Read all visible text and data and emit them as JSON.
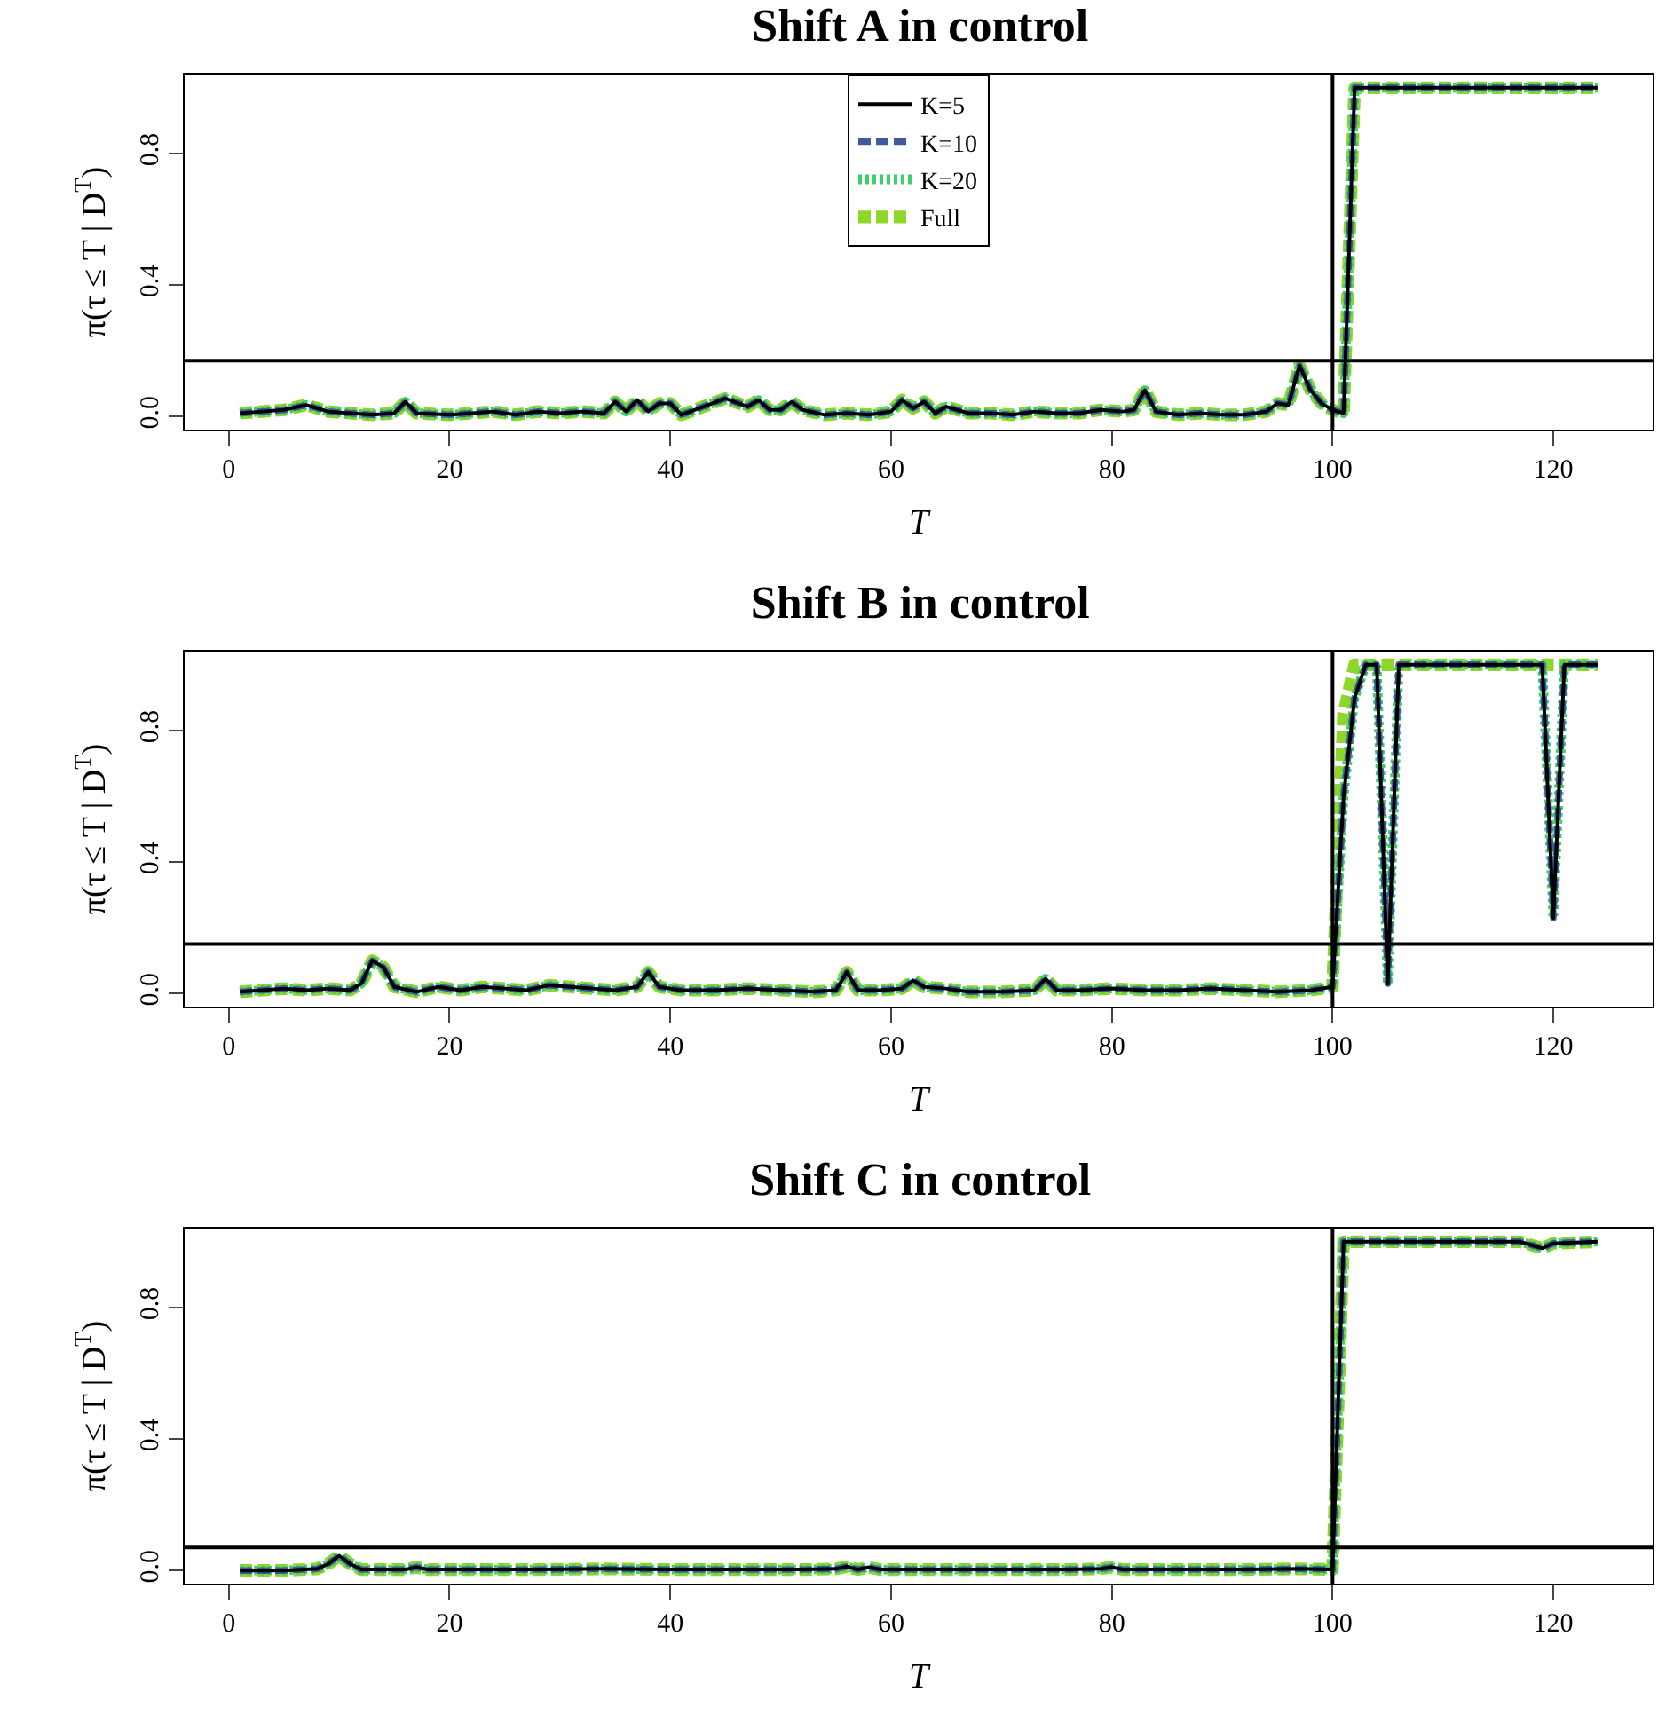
{
  "chart_data": [
    {
      "type": "line",
      "title": "Shift A in control",
      "xlabel": "T",
      "ylabel": "π(τ ≤ T | D$^{T}$)",
      "xlim": [
        -4,
        129
      ],
      "ylim": [
        -0.04,
        1.04
      ],
      "xticks": [
        0,
        20,
        40,
        60,
        80,
        100,
        120
      ],
      "yticks": [
        {
          "value": 0,
          "label": "0.0"
        },
        {
          "value": 0.4,
          "label": "0.4"
        },
        {
          "value": 0.8,
          "label": "0.8"
        }
      ],
      "legend": "top",
      "grid": false,
      "x": [
        1,
        3,
        5,
        7,
        9,
        11,
        13,
        15,
        16,
        17,
        20,
        22,
        24,
        26,
        28,
        30,
        32,
        34,
        35,
        36,
        37,
        38,
        39,
        40,
        41,
        43,
        45,
        47,
        48,
        49,
        50,
        51,
        52,
        54,
        56,
        58,
        60,
        61,
        62,
        63,
        64,
        65,
        67,
        69,
        71,
        73,
        75,
        77,
        79,
        81,
        82,
        83,
        84,
        86,
        88,
        90,
        92,
        94,
        95,
        96,
        97,
        98,
        99,
        100,
        101,
        102,
        124
      ],
      "series": [
        {
          "name": "K=5",
          "color": "#000000",
          "line_style": "solid",
          "values": [
            0.01,
            0.015,
            0.02,
            0.035,
            0.015,
            0.01,
            0.005,
            0.01,
            0.045,
            0.01,
            0.005,
            0.01,
            0.015,
            0.005,
            0.015,
            0.01,
            0.015,
            0.01,
            0.045,
            0.015,
            0.05,
            0.015,
            0.04,
            0.04,
            0.005,
            0.03,
            0.055,
            0.03,
            0.05,
            0.02,
            0.02,
            0.045,
            0.02,
            0.005,
            0.01,
            0.005,
            0.015,
            0.05,
            0.025,
            0.045,
            0.01,
            0.03,
            0.01,
            0.01,
            0.005,
            0.015,
            0.01,
            0.01,
            0.02,
            0.015,
            0.02,
            0.08,
            0.015,
            0.005,
            0.01,
            0.005,
            0.005,
            0.015,
            0.04,
            0.035,
            0.155,
            0.08,
            0.04,
            0.02,
            0.01,
            1,
            1
          ]
        },
        {
          "name": "K=10",
          "color": "#3b5e9a",
          "line_style": "dashed",
          "values": [
            0.01,
            0.015,
            0.02,
            0.035,
            0.015,
            0.01,
            0.005,
            0.01,
            0.045,
            0.01,
            0.005,
            0.01,
            0.015,
            0.005,
            0.015,
            0.01,
            0.015,
            0.01,
            0.045,
            0.015,
            0.05,
            0.015,
            0.04,
            0.04,
            0.005,
            0.03,
            0.055,
            0.03,
            0.05,
            0.02,
            0.02,
            0.045,
            0.02,
            0.005,
            0.01,
            0.005,
            0.015,
            0.05,
            0.025,
            0.045,
            0.01,
            0.03,
            0.01,
            0.01,
            0.005,
            0.015,
            0.01,
            0.01,
            0.02,
            0.015,
            0.02,
            0.08,
            0.015,
            0.005,
            0.01,
            0.005,
            0.005,
            0.015,
            0.04,
            0.035,
            0.155,
            0.08,
            0.04,
            0.02,
            0.01,
            1,
            1
          ]
        },
        {
          "name": "K=20",
          "color": "#3ecf6a",
          "line_style": "dotted",
          "values": [
            0.01,
            0.015,
            0.02,
            0.035,
            0.015,
            0.01,
            0.005,
            0.01,
            0.045,
            0.01,
            0.005,
            0.01,
            0.015,
            0.005,
            0.015,
            0.01,
            0.015,
            0.01,
            0.045,
            0.015,
            0.05,
            0.015,
            0.04,
            0.04,
            0.005,
            0.03,
            0.055,
            0.03,
            0.05,
            0.02,
            0.02,
            0.045,
            0.02,
            0.005,
            0.01,
            0.005,
            0.015,
            0.05,
            0.025,
            0.045,
            0.01,
            0.03,
            0.01,
            0.01,
            0.005,
            0.015,
            0.01,
            0.01,
            0.02,
            0.015,
            0.02,
            0.08,
            0.015,
            0.005,
            0.01,
            0.005,
            0.005,
            0.015,
            0.04,
            0.035,
            0.155,
            0.08,
            0.04,
            0.02,
            0.01,
            1,
            1
          ]
        },
        {
          "name": "Full",
          "color": "#8fd62a",
          "line_style": "dashed",
          "values": [
            0.01,
            0.015,
            0.02,
            0.035,
            0.015,
            0.01,
            0.005,
            0.01,
            0.045,
            0.01,
            0.005,
            0.01,
            0.015,
            0.005,
            0.015,
            0.01,
            0.015,
            0.01,
            0.045,
            0.015,
            0.05,
            0.015,
            0.04,
            0.04,
            0.005,
            0.03,
            0.055,
            0.03,
            0.05,
            0.02,
            0.02,
            0.045,
            0.02,
            0.005,
            0.01,
            0.005,
            0.015,
            0.05,
            0.025,
            0.045,
            0.01,
            0.03,
            0.01,
            0.01,
            0.005,
            0.015,
            0.01,
            0.01,
            0.02,
            0.015,
            0.02,
            0.08,
            0.015,
            0.005,
            0.01,
            0.005,
            0.005,
            0.015,
            0.04,
            0.035,
            0.155,
            0.08,
            0.04,
            0.02,
            0.01,
            1,
            1
          ]
        }
      ],
      "ref_lines": [
        {
          "axis": "x",
          "value": 100,
          "color": "#000000"
        },
        {
          "axis": "y",
          "value": 0.17,
          "color": "#000000"
        }
      ]
    },
    {
      "type": "line",
      "title": "Shift B in control",
      "xlabel": "T",
      "ylabel": "π(τ ≤ T | D$^{T}$)",
      "xlim": [
        -4,
        129
      ],
      "ylim": [
        -0.04,
        1.04
      ],
      "xticks": [
        0,
        20,
        40,
        60,
        80,
        100,
        120
      ],
      "yticks": [
        {
          "value": 0,
          "label": "0.0"
        },
        {
          "value": 0.4,
          "label": "0.4"
        },
        {
          "value": 0.8,
          "label": "0.8"
        }
      ],
      "legend": false,
      "grid": false,
      "x": [
        1,
        3,
        5,
        7,
        9,
        11,
        12,
        13,
        14,
        15,
        17,
        19,
        21,
        23,
        25,
        27,
        29,
        31,
        33,
        35,
        37,
        38,
        39,
        41,
        44,
        47,
        50,
        53,
        55,
        56,
        57,
        59,
        61,
        62,
        63,
        65,
        67,
        70,
        73,
        74,
        75,
        77,
        80,
        83,
        86,
        89,
        92,
        95,
        98,
        100,
        101,
        102,
        103,
        104,
        105,
        106,
        119,
        120,
        121,
        124
      ],
      "series": [
        {
          "color": "#000000",
          "line_style": "solid",
          "values": [
            0.005,
            0.01,
            0.015,
            0.01,
            0.015,
            0.01,
            0.03,
            0.1,
            0.08,
            0.02,
            0.005,
            0.02,
            0.01,
            0.02,
            0.015,
            0.01,
            0.025,
            0.02,
            0.015,
            0.01,
            0.02,
            0.065,
            0.02,
            0.01,
            0.01,
            0.015,
            0.01,
            0.005,
            0.01,
            0.065,
            0.01,
            0.01,
            0.015,
            0.04,
            0.02,
            0.015,
            0.005,
            0.005,
            0.01,
            0.045,
            0.01,
            0.01,
            0.015,
            0.01,
            0.01,
            0.015,
            0.01,
            0.005,
            0.01,
            0.02,
            0.6,
            0.9,
            1,
            1,
            0.03,
            1,
            1,
            0.23,
            1,
            1
          ]
        },
        {
          "color": "#3b5e9a",
          "line_style": "dashed",
          "values": [
            0.005,
            0.01,
            0.015,
            0.01,
            0.015,
            0.01,
            0.03,
            0.1,
            0.08,
            0.02,
            0.005,
            0.02,
            0.01,
            0.02,
            0.015,
            0.01,
            0.025,
            0.02,
            0.015,
            0.01,
            0.02,
            0.065,
            0.02,
            0.01,
            0.01,
            0.015,
            0.01,
            0.005,
            0.01,
            0.065,
            0.01,
            0.01,
            0.015,
            0.04,
            0.02,
            0.015,
            0.005,
            0.005,
            0.01,
            0.045,
            0.01,
            0.01,
            0.015,
            0.01,
            0.01,
            0.015,
            0.01,
            0.005,
            0.01,
            0.02,
            0.6,
            0.9,
            1,
            1,
            0.03,
            1,
            1,
            0.23,
            1,
            1
          ]
        },
        {
          "color": "#3ecf6a",
          "line_style": "dotted",
          "values": [
            0.005,
            0.01,
            0.015,
            0.01,
            0.015,
            0.01,
            0.03,
            0.1,
            0.08,
            0.02,
            0.005,
            0.02,
            0.01,
            0.02,
            0.015,
            0.01,
            0.025,
            0.02,
            0.015,
            0.01,
            0.02,
            0.065,
            0.02,
            0.01,
            0.01,
            0.015,
            0.01,
            0.005,
            0.01,
            0.065,
            0.01,
            0.01,
            0.015,
            0.04,
            0.02,
            0.015,
            0.005,
            0.005,
            0.01,
            0.045,
            0.01,
            0.01,
            0.015,
            0.01,
            0.01,
            0.015,
            0.01,
            0.005,
            0.01,
            0.02,
            0.6,
            0.9,
            1,
            1,
            0.03,
            1,
            1,
            0.23,
            1,
            1
          ]
        },
        {
          "color": "#8fd62a",
          "line_style": "dashed",
          "values": [
            0.005,
            0.01,
            0.015,
            0.01,
            0.015,
            0.01,
            0.03,
            0.1,
            0.08,
            0.02,
            0.005,
            0.02,
            0.01,
            0.02,
            0.015,
            0.01,
            0.025,
            0.02,
            0.015,
            0.01,
            0.02,
            0.065,
            0.02,
            0.01,
            0.01,
            0.015,
            0.01,
            0.005,
            0.01,
            0.065,
            0.01,
            0.01,
            0.015,
            0.04,
            0.02,
            0.015,
            0.005,
            0.005,
            0.01,
            0.045,
            0.01,
            0.01,
            0.015,
            0.01,
            0.01,
            0.015,
            0.01,
            0.005,
            0.01,
            0.02,
            0.85,
            1,
            1,
            1,
            1,
            1,
            1,
            1,
            1,
            1
          ]
        }
      ],
      "ref_lines": [
        {
          "axis": "x",
          "value": 100,
          "color": "#000000"
        },
        {
          "axis": "y",
          "value": 0.15,
          "color": "#000000"
        }
      ]
    },
    {
      "type": "line",
      "title": "Shift C in control",
      "xlabel": "T",
      "ylabel": "π(τ ≤ T | D$^{T}$)",
      "xlim": [
        -4,
        129
      ],
      "ylim": [
        -0.04,
        1.04
      ],
      "xticks": [
        0,
        20,
        40,
        60,
        80,
        100,
        120
      ],
      "yticks": [
        {
          "value": 0,
          "label": "0.0"
        },
        {
          "value": 0.4,
          "label": "0.4"
        },
        {
          "value": 0.8,
          "label": "0.8"
        }
      ],
      "legend": false,
      "grid": false,
      "x": [
        1,
        5,
        8,
        9,
        10,
        11,
        12,
        16,
        17,
        18,
        22,
        28,
        34,
        40,
        46,
        52,
        55,
        56,
        57,
        58,
        59,
        64,
        70,
        76,
        79,
        80,
        81,
        86,
        92,
        97,
        100,
        101,
        117,
        118,
        119,
        120,
        124
      ],
      "series": [
        {
          "color": "#000000",
          "line_style": "solid",
          "values": [
            0,
            0,
            0.005,
            0.02,
            0.045,
            0.02,
            0.003,
            0.003,
            0.01,
            0.003,
            0.003,
            0.003,
            0.005,
            0.003,
            0.003,
            0.003,
            0.005,
            0.012,
            0.003,
            0.01,
            0.003,
            0.003,
            0.003,
            0.003,
            0.005,
            0.01,
            0.003,
            0.003,
            0.003,
            0.005,
            0.003,
            1,
            1,
            0.99,
            0.98,
            0.995,
            1
          ]
        },
        {
          "color": "#3b5e9a",
          "line_style": "dashed",
          "values": [
            0,
            0,
            0.005,
            0.02,
            0.045,
            0.02,
            0.003,
            0.003,
            0.01,
            0.003,
            0.003,
            0.003,
            0.005,
            0.003,
            0.003,
            0.003,
            0.005,
            0.012,
            0.003,
            0.01,
            0.003,
            0.003,
            0.003,
            0.003,
            0.005,
            0.01,
            0.003,
            0.003,
            0.003,
            0.005,
            0.003,
            1,
            1,
            0.99,
            0.98,
            0.995,
            1
          ]
        },
        {
          "color": "#3ecf6a",
          "line_style": "dotted",
          "values": [
            0,
            0,
            0.005,
            0.02,
            0.045,
            0.02,
            0.003,
            0.003,
            0.01,
            0.003,
            0.003,
            0.003,
            0.005,
            0.003,
            0.003,
            0.003,
            0.005,
            0.012,
            0.003,
            0.01,
            0.003,
            0.003,
            0.003,
            0.003,
            0.005,
            0.01,
            0.003,
            0.003,
            0.003,
            0.005,
            0.003,
            1,
            1,
            0.99,
            0.98,
            0.995,
            1
          ]
        },
        {
          "color": "#8fd62a",
          "line_style": "dashed",
          "values": [
            0,
            0,
            0.005,
            0.02,
            0.045,
            0.02,
            0.003,
            0.003,
            0.01,
            0.003,
            0.003,
            0.003,
            0.005,
            0.003,
            0.003,
            0.003,
            0.005,
            0.012,
            0.003,
            0.01,
            0.003,
            0.003,
            0.003,
            0.003,
            0.005,
            0.01,
            0.003,
            0.003,
            0.003,
            0.005,
            0.003,
            1,
            1,
            0.99,
            0.98,
            0.995,
            1
          ]
        }
      ],
      "ref_lines": [
        {
          "axis": "x",
          "value": 100,
          "color": "#000000"
        },
        {
          "axis": "y",
          "value": 0.07,
          "color": "#000000"
        }
      ]
    }
  ]
}
